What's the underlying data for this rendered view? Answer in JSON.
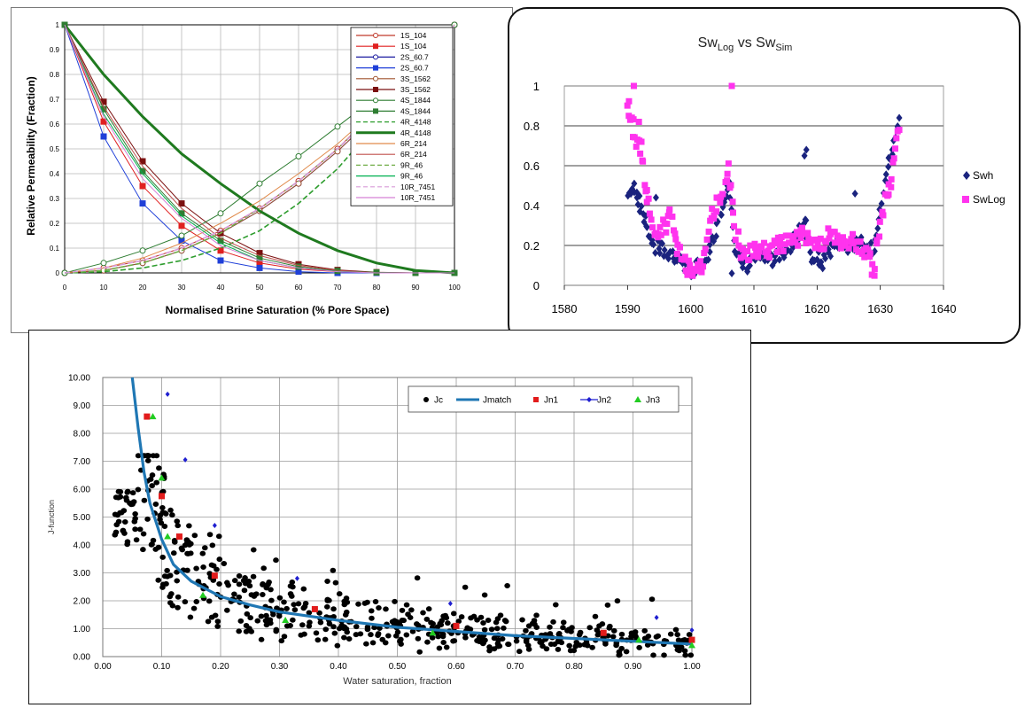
{
  "chart_data": [
    {
      "type": "line",
      "xlabel": "Normalised Brine Saturation (% Pore Space)",
      "ylabel": "Relative Permeability (Fraction)",
      "xlim": [
        0,
        100
      ],
      "ylim": [
        0,
        1
      ],
      "x_ticks": [
        "0",
        "10",
        "20",
        "30",
        "40",
        "50",
        "60",
        "70",
        "80",
        "90",
        "100"
      ],
      "y_ticks": [
        "0",
        "0.1",
        "0.2",
        "0.3",
        "0.4",
        "0.5",
        "0.6",
        "0.7",
        "0.8",
        "0.9",
        "1"
      ],
      "grid": true,
      "legend_position": "top-right",
      "x": [
        0,
        10,
        20,
        30,
        40,
        50,
        60,
        70,
        80,
        90,
        100
      ],
      "series": [
        {
          "name": "1S_104",
          "color": "#c0392b",
          "marker": "circle-open",
          "values": [
            0,
            0.02,
            0.05,
            0.1,
            0.17,
            0.26,
            0.37,
            0.5,
            0.66,
            0.83,
            1.0
          ]
        },
        {
          "name": "1S_104",
          "color": "#e02020",
          "marker": "square",
          "values": [
            1.0,
            0.61,
            0.35,
            0.19,
            0.09,
            0.04,
            0.015,
            0.005,
            0,
            0,
            0
          ]
        },
        {
          "name": "2S_60.7",
          "color": "#1a1aa0",
          "marker": "circle-open",
          "values": [
            0,
            0.01,
            0.04,
            0.09,
            0.16,
            0.25,
            0.36,
            0.49,
            0.64,
            0.81,
            1.0
          ]
        },
        {
          "name": "2S_60.7",
          "color": "#1f3fd8",
          "marker": "square",
          "values": [
            1.0,
            0.55,
            0.28,
            0.13,
            0.05,
            0.02,
            0.005,
            0,
            0,
            0,
            0
          ]
        },
        {
          "name": "3S_1562",
          "color": "#a0522d",
          "marker": "circle-open",
          "values": [
            0,
            0.01,
            0.04,
            0.09,
            0.16,
            0.25,
            0.36,
            0.49,
            0.64,
            0.81,
            1.0
          ]
        },
        {
          "name": "3S_1562",
          "color": "#7b1010",
          "marker": "square",
          "values": [
            1.0,
            0.69,
            0.45,
            0.28,
            0.16,
            0.08,
            0.035,
            0.012,
            0.003,
            0,
            0
          ]
        },
        {
          "name": "4S_1844",
          "color": "#2e7d32",
          "marker": "circle-open",
          "values": [
            0,
            0.04,
            0.09,
            0.15,
            0.24,
            0.36,
            0.47,
            0.59,
            0.71,
            0.85,
            1.0
          ]
        },
        {
          "name": "4S_1844",
          "color": "#2e7d32",
          "marker": "square",
          "values": [
            1.0,
            0.66,
            0.41,
            0.24,
            0.13,
            0.06,
            0.025,
            0.008,
            0.002,
            0,
            0
          ]
        },
        {
          "name": "4R_4148",
          "color": "#2e9d2e",
          "marker": "dash",
          "values": [
            0,
            0.005,
            0.02,
            0.05,
            0.1,
            0.17,
            0.28,
            0.42,
            0.6,
            0.79,
            1.0
          ]
        },
        {
          "name": "4R_4148",
          "color": "#1f7a1f",
          "marker": "thick",
          "values": [
            1.0,
            0.8,
            0.63,
            0.48,
            0.36,
            0.25,
            0.16,
            0.09,
            0.04,
            0.01,
            0
          ]
        },
        {
          "name": "6R_214",
          "color": "#e08a4a",
          "marker": "line",
          "values": [
            0,
            0.02,
            0.06,
            0.12,
            0.2,
            0.29,
            0.4,
            0.52,
            0.66,
            0.82,
            1.0
          ]
        },
        {
          "name": "6R_214",
          "color": "#c0504d",
          "marker": "line",
          "values": [
            1.0,
            0.67,
            0.43,
            0.26,
            0.14,
            0.07,
            0.03,
            0.01,
            0,
            0,
            0
          ]
        },
        {
          "name": "9R_46",
          "color": "#70ad47",
          "marker": "dash",
          "values": [
            0,
            0.01,
            0.04,
            0.09,
            0.16,
            0.26,
            0.37,
            0.5,
            0.65,
            0.82,
            1.0
          ]
        },
        {
          "name": "9R_46",
          "color": "#00b050",
          "marker": "line",
          "values": [
            1.0,
            0.64,
            0.4,
            0.23,
            0.12,
            0.05,
            0.02,
            0.006,
            0,
            0,
            0
          ]
        },
        {
          "name": "10R_7451",
          "color": "#d99ad9",
          "marker": "dash",
          "values": [
            0,
            0.02,
            0.05,
            0.1,
            0.17,
            0.26,
            0.37,
            0.5,
            0.65,
            0.82,
            1.0
          ]
        },
        {
          "name": "10R_7451",
          "color": "#d580d5",
          "marker": "line",
          "values": [
            1.0,
            0.63,
            0.38,
            0.22,
            0.11,
            0.05,
            0.02,
            0.005,
            0,
            0,
            0
          ]
        }
      ]
    },
    {
      "type": "scatter",
      "title_main": "Sw",
      "title_sub1": "Log",
      "title_mid": " vs Sw",
      "title_sub2": "Sim",
      "xlim": [
        1580,
        1640
      ],
      "ylim": [
        0,
        1
      ],
      "x_ticks": [
        "1580",
        "1590",
        "1600",
        "1610",
        "1620",
        "1630",
        "1640"
      ],
      "y_ticks": [
        "0",
        "0.2",
        "0.4",
        "0.6",
        "0.8",
        "1"
      ],
      "grid": true,
      "legend_position": "right",
      "series": [
        {
          "name": "Swh",
          "color": "#1a237e",
          "marker": "diamond",
          "anchors": [
            [
              1590,
              0.47
            ],
            [
              1591,
              0.49
            ],
            [
              1592,
              0.4
            ],
            [
              1593,
              0.3
            ],
            [
              1594,
              0.2
            ],
            [
              1596,
              0.17
            ],
            [
              1598,
              0.12
            ],
            [
              1600,
              0.08
            ],
            [
              1602,
              0.1
            ],
            [
              1604,
              0.25
            ],
            [
              1605,
              0.4
            ],
            [
              1606,
              0.52
            ],
            [
              1607,
              0.15
            ],
            [
              1609,
              0.1
            ],
            [
              1611,
              0.15
            ],
            [
              1613,
              0.13
            ],
            [
              1615,
              0.18
            ],
            [
              1617,
              0.25
            ],
            [
              1618,
              0.35
            ],
            [
              1619,
              0.15
            ],
            [
              1621,
              0.12
            ],
            [
              1623,
              0.2
            ],
            [
              1625,
              0.2
            ],
            [
              1627,
              0.22
            ],
            [
              1628,
              0.15
            ],
            [
              1629,
              0.2
            ],
            [
              1630,
              0.35
            ],
            [
              1631,
              0.55
            ],
            [
              1632,
              0.7
            ],
            [
              1633,
              0.84
            ]
          ],
          "extra": [
            [
              1591.5,
              0.44
            ],
            [
              1605.8,
              0.5
            ],
            [
              1606.5,
              0.06
            ],
            [
              1618.3,
              0.68
            ],
            [
              1618.0,
              0.65
            ],
            [
              1626.0,
              0.46
            ],
            [
              1594.5,
              0.44
            ]
          ]
        },
        {
          "name": "SwLog",
          "color": "#ff33ee",
          "marker": "square",
          "anchors": [
            [
              1590,
              0.92
            ],
            [
              1591,
              0.78
            ],
            [
              1592,
              0.68
            ],
            [
              1593,
              0.45
            ],
            [
              1594,
              0.3
            ],
            [
              1595,
              0.28
            ],
            [
              1596,
              0.3
            ],
            [
              1597,
              0.35
            ],
            [
              1598,
              0.2
            ],
            [
              1599,
              0.1
            ],
            [
              1600,
              0.08
            ],
            [
              1601,
              0.06
            ],
            [
              1602,
              0.1
            ],
            [
              1603,
              0.35
            ],
            [
              1604,
              0.4
            ],
            [
              1605,
              0.45
            ],
            [
              1606,
              0.58
            ],
            [
              1607,
              0.3
            ],
            [
              1608,
              0.15
            ],
            [
              1610,
              0.18
            ],
            [
              1612,
              0.18
            ],
            [
              1614,
              0.2
            ],
            [
              1616,
              0.22
            ],
            [
              1618,
              0.25
            ],
            [
              1620,
              0.2
            ],
            [
              1622,
              0.25
            ],
            [
              1624,
              0.22
            ],
            [
              1626,
              0.22
            ],
            [
              1628,
              0.15
            ],
            [
              1629,
              0.08
            ],
            [
              1630,
              0.3
            ],
            [
              1631,
              0.45
            ],
            [
              1632,
              0.58
            ],
            [
              1633,
              0.78
            ]
          ],
          "extra": [
            [
              1591,
              1.0
            ],
            [
              1606.5,
              1.0
            ],
            [
              1590.2,
              0.85
            ],
            [
              1591.8,
              0.82
            ],
            [
              1592.2,
              0.72
            ]
          ]
        }
      ]
    },
    {
      "type": "scatter",
      "xlabel": "Water saturation, fraction",
      "ylabel": "J-function",
      "xlim": [
        0,
        1
      ],
      "ylim": [
        0,
        10
      ],
      "x_ticks": [
        "0.00",
        "0.10",
        "0.20",
        "0.30",
        "0.40",
        "0.50",
        "0.60",
        "0.70",
        "0.80",
        "0.90",
        "1.00"
      ],
      "y_ticks": [
        "0.00",
        "1.00",
        "2.00",
        "3.00",
        "4.00",
        "5.00",
        "6.00",
        "7.00",
        "8.00",
        "9.00",
        "10.00"
      ],
      "grid": true,
      "legend_position": "top-right",
      "series": [
        {
          "name": "Jc",
          "color": "#000000",
          "marker": "circle",
          "values_note": "dense cloud following Jmatch"
        },
        {
          "name": "Jmatch",
          "color": "#1f77b4",
          "marker": "line",
          "x": [
            0.05,
            0.06,
            0.07,
            0.08,
            0.1,
            0.12,
            0.15,
            0.2,
            0.25,
            0.3,
            0.4,
            0.5,
            0.6,
            0.7,
            0.8,
            0.9,
            1.0
          ],
          "values": [
            10,
            8.2,
            6.6,
            5.5,
            4.2,
            3.3,
            2.7,
            2.15,
            1.85,
            1.6,
            1.3,
            1.05,
            0.9,
            0.75,
            0.65,
            0.55,
            0.45
          ]
        },
        {
          "name": "Jn1",
          "color": "#e21c1c",
          "marker": "square",
          "x": [
            0.075,
            0.1,
            0.13,
            0.19,
            0.36,
            0.6,
            0.85,
            1.0
          ],
          "values": [
            8.6,
            5.75,
            4.3,
            2.9,
            1.7,
            1.1,
            0.85,
            0.6
          ]
        },
        {
          "name": "Jn2",
          "color": "#1f1fd0",
          "marker": "diamond",
          "x": [
            0.11,
            0.14,
            0.19,
            0.33,
            0.59,
            0.94,
            1.0
          ],
          "values": [
            9.4,
            7.05,
            4.7,
            2.8,
            1.9,
            1.4,
            0.95
          ]
        },
        {
          "name": "Jn3",
          "color": "#22cc22",
          "marker": "triangle",
          "x": [
            0.085,
            0.1,
            0.11,
            0.17,
            0.31,
            0.56,
            0.91,
            1.0
          ],
          "values": [
            8.6,
            6.4,
            4.3,
            2.2,
            1.3,
            0.85,
            0.6,
            0.4
          ]
        }
      ]
    }
  ]
}
